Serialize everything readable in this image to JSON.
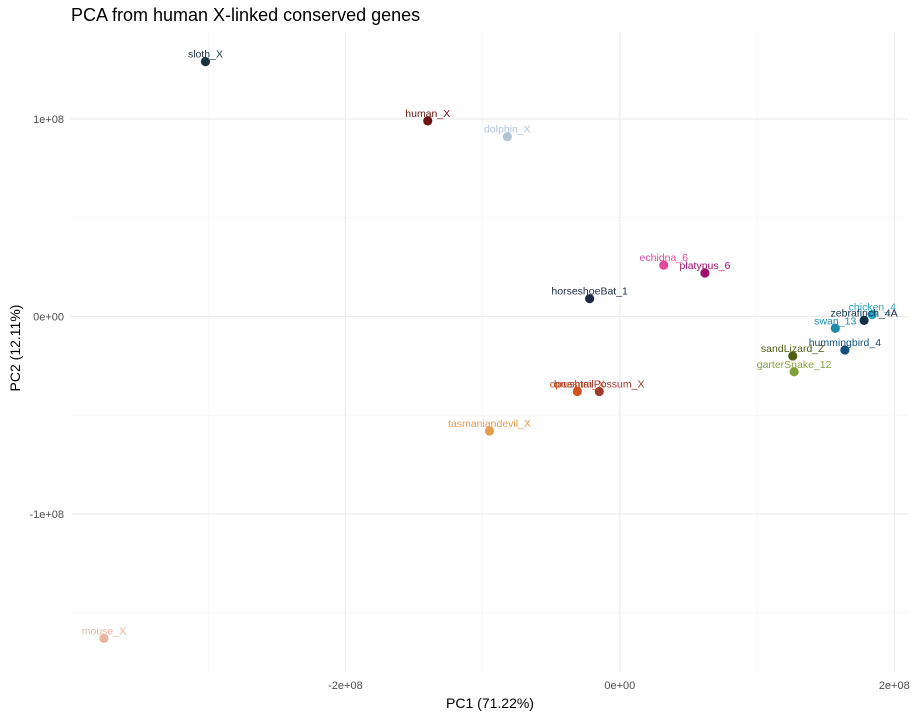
{
  "chart_data": {
    "type": "scatter",
    "title": "PCA from human X-linked conserved genes",
    "xlabel": "PC1 (71.22%)",
    "ylabel": "PC2 (12.11%)",
    "xlim": [
      -400000000.0,
      210000000.0
    ],
    "ylim": [
      -180000000.0,
      144000000.0
    ],
    "xticks": [
      -200000000.0,
      0,
      200000000.0
    ],
    "xtick_labels": [
      "-2e+08",
      "0e+00",
      "2e+08"
    ],
    "yticks": [
      -100000000.0,
      0,
      100000000.0
    ],
    "ytick_labels": [
      "-1e+08",
      "0e+00",
      "1e+08"
    ],
    "grid": true,
    "points": [
      {
        "label": "sloth_X",
        "x": -302000000.0,
        "y": 129000000.0,
        "color": "#1b3340"
      },
      {
        "label": "human_X",
        "x": -140000000.0,
        "y": 99000000.0,
        "color": "#6b1414"
      },
      {
        "label": "dolphin_X",
        "x": -82000000.0,
        "y": 91000000.0,
        "color": "#b2c3d6"
      },
      {
        "label": "echidna_6",
        "x": 32000000.0,
        "y": 26000000.0,
        "color": "#e2479b"
      },
      {
        "label": "platypus_6",
        "x": 62000000.0,
        "y": 22000000.0,
        "color": "#9e0f6b"
      },
      {
        "label": "horseshoeBat_1",
        "x": -22000000.0,
        "y": 9000000.0,
        "color": "#1d2b45"
      },
      {
        "label": "chicken_4",
        "x": 184000000.0,
        "y": 1000000.0,
        "color": "#29a5c8"
      },
      {
        "label": "zebrafinch_4A",
        "x": 178000000.0,
        "y": -2000000.0,
        "color": "#0f2f4a"
      },
      {
        "label": "swan_13",
        "x": 157000000.0,
        "y": -6000000.0,
        "color": "#1f8ba8"
      },
      {
        "label": "hummingbird_4",
        "x": 164000000.0,
        "y": -17000000.0,
        "color": "#0e4f7c"
      },
      {
        "label": "sandLizard_Z",
        "x": 126000000.0,
        "y": -20000000.0,
        "color": "#4f5e15"
      },
      {
        "label": "garterSnake_12",
        "x": 127000000.0,
        "y": -28000000.0,
        "color": "#7fa23b"
      },
      {
        "label": "opossum_X",
        "x": -31000000.0,
        "y": -38000000.0,
        "color": "#d2531f"
      },
      {
        "label": "brushtailPossum_X",
        "x": -15000000.0,
        "y": -38000000.0,
        "color": "#a03a2c"
      },
      {
        "label": "tasmaniandevil_X",
        "x": -95000000.0,
        "y": -58000000.0,
        "color": "#e39b4c"
      },
      {
        "label": "mouse_X",
        "x": -376000000.0,
        "y": -163000000.0,
        "color": "#ecb3a1"
      }
    ]
  }
}
